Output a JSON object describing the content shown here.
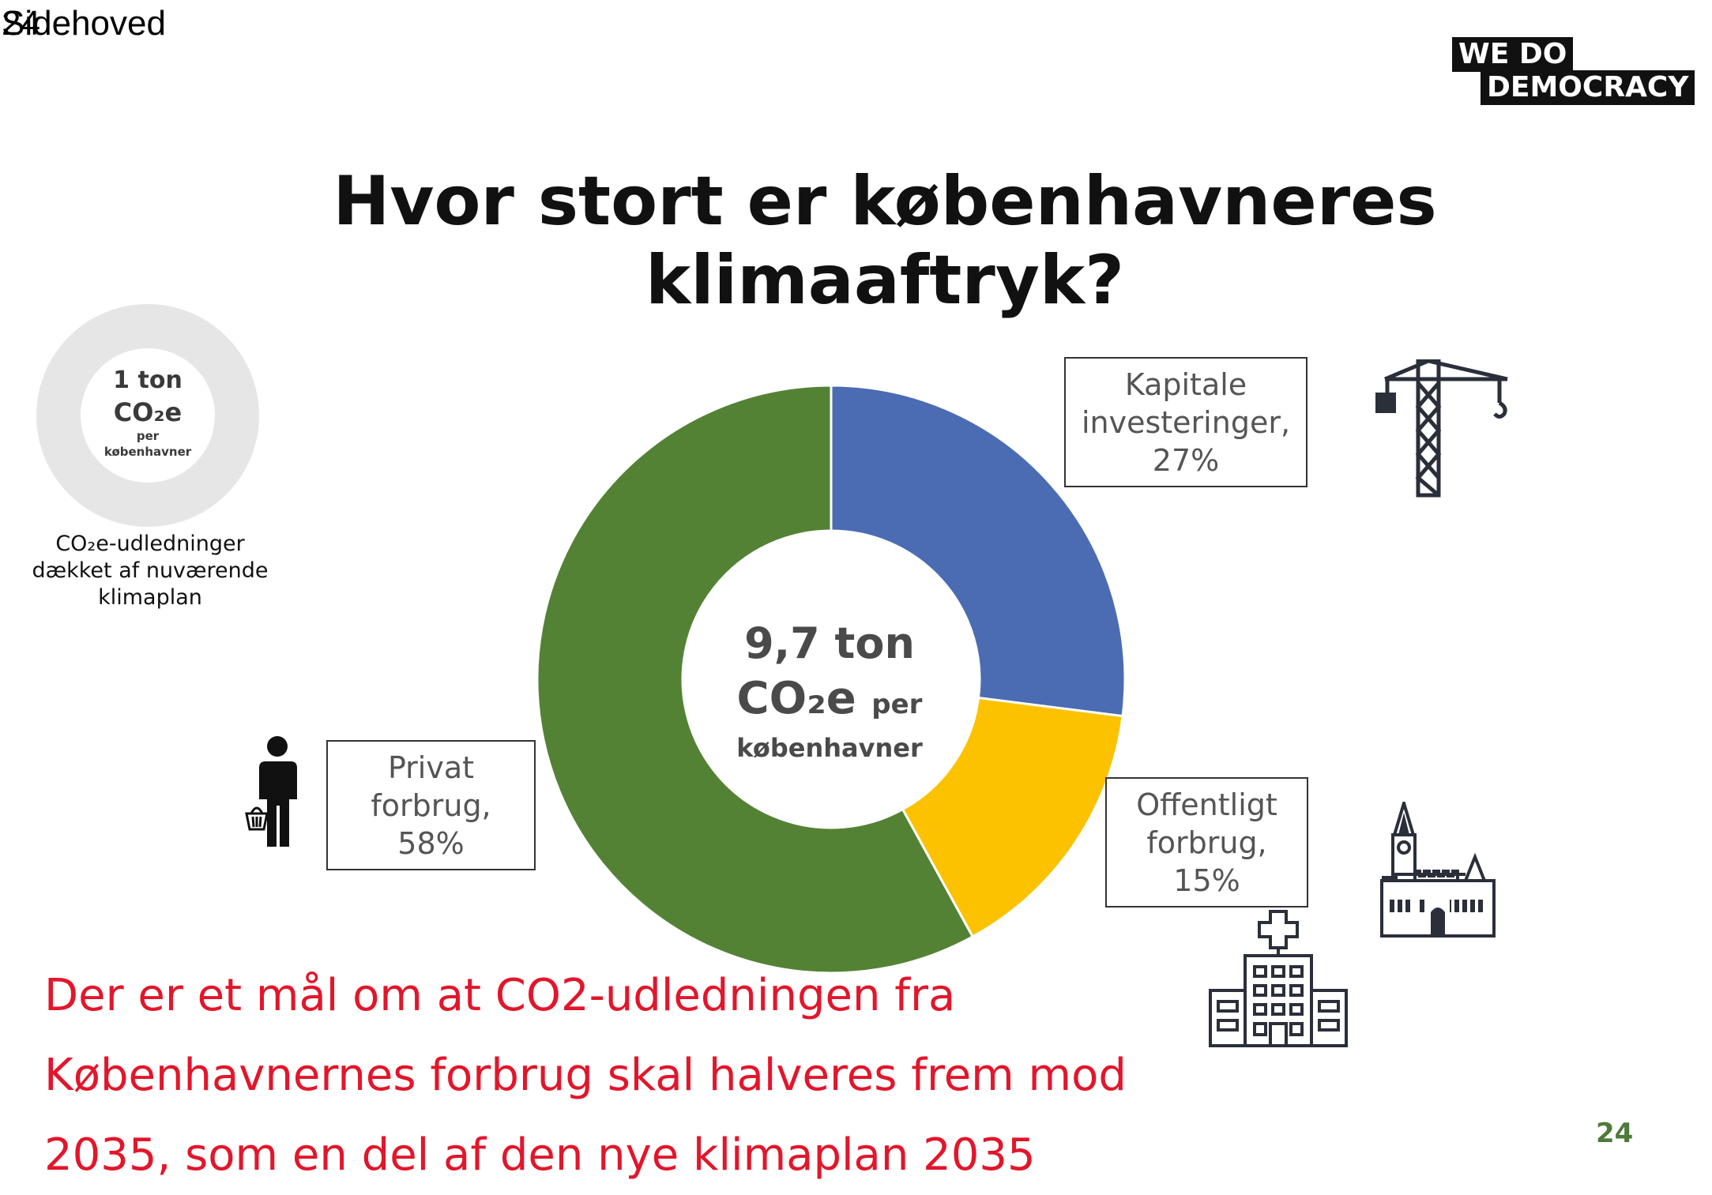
{
  "header": {
    "label": "Sidehoved",
    "overlap_number": "24"
  },
  "logo": {
    "line1": "WE  DO",
    "line2": "DEMOCRACY"
  },
  "title": {
    "line1": "Hvor stort er københavneres",
    "line2": "klimaaftryk?"
  },
  "small_ring": {
    "line1": "1 ton",
    "line2": "CO₂e",
    "line3": "per",
    "line4": "københavner",
    "caption_line1": "CO₂e-udledninger",
    "caption_line2": "dækket af nuværende",
    "caption_line3": "klimaplan",
    "ring_color": "#e6e6e6"
  },
  "chart_data": {
    "type": "pie",
    "title": "Hvor stort er københavneres klimaaftryk?",
    "center_label": {
      "line1": "9,7 ton",
      "line2_main": "CO₂e",
      "line2_suffix": "per",
      "line3": "københavner"
    },
    "slices": [
      {
        "label": "Kapitale investeringer",
        "value": 27,
        "color": "#4b6cb3"
      },
      {
        "label": "Offentligt forbrug",
        "value": 15,
        "color": "#fcc200"
      },
      {
        "label": "Privat forbrug",
        "value": 58,
        "color": "#548235"
      }
    ],
    "unit": "%"
  },
  "callouts": {
    "kapital": {
      "line1": "Kapitale",
      "line2": "investeringer,",
      "line3": "27%"
    },
    "privat": {
      "line1": "Privat",
      "line2": "forbrug,",
      "line3": "58%"
    },
    "offentlig": {
      "line1": "Offentligt",
      "line2": "forbrug,",
      "line3": "15%"
    }
  },
  "icons": {
    "crane": "crane-icon",
    "person": "person-with-basket-icon",
    "church": "city-hall-icon",
    "hospital": "hospital-icon"
  },
  "bottom_text": {
    "line1": "Der er et mål om at CO2-udledningen fra",
    "line2": "Københavnernes forbrug skal halveres frem mod",
    "line3": "2035, som en del af den nye klimaplan 2035"
  },
  "page_number": "24"
}
